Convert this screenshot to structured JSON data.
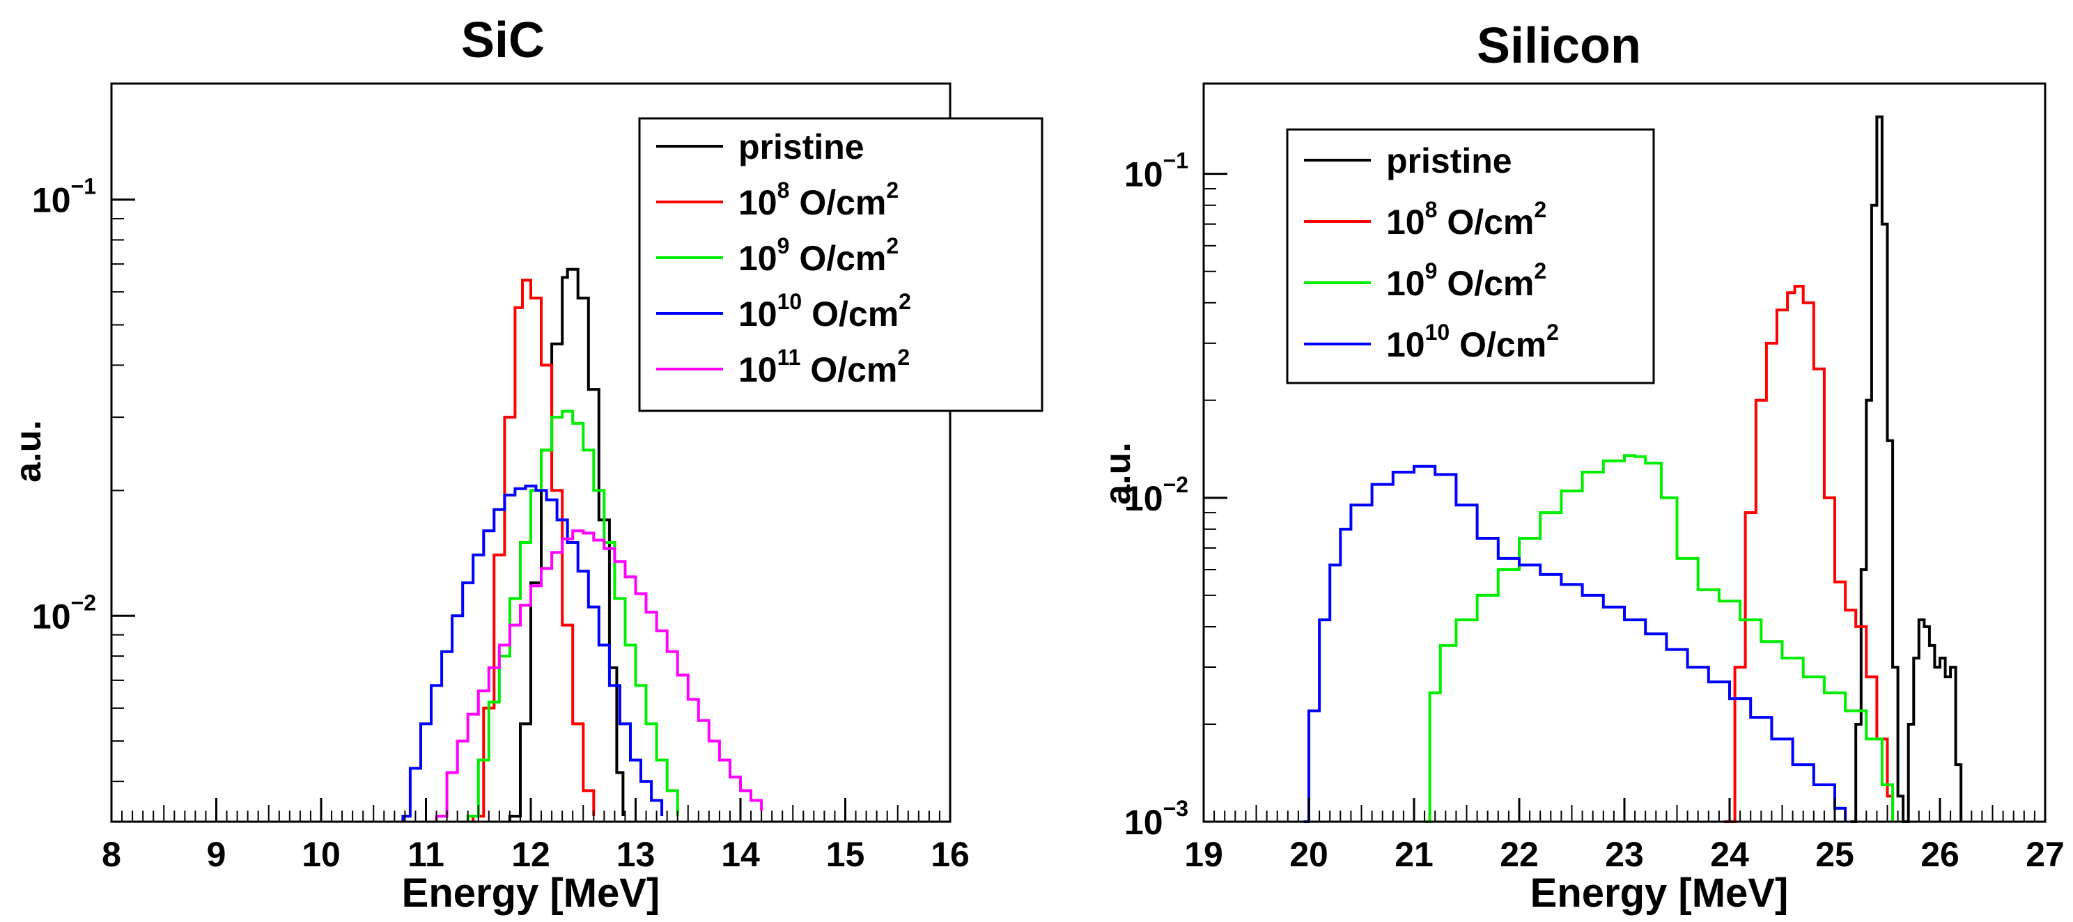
{
  "chart_data": [
    {
      "type": "line",
      "title": "SiC",
      "xlabel": "Energy [MeV]",
      "ylabel": "a.u.",
      "xlim": [
        8,
        16
      ],
      "ylim": [
        0.0032,
        0.19
      ],
      "yscale": "log",
      "xticks": [
        "8",
        "9",
        "10",
        "11",
        "12",
        "13",
        "14",
        "15",
        "16"
      ],
      "yticks": [
        {
          "value": 0.1,
          "base": "10",
          "exp": "−1"
        },
        {
          "value": 0.01,
          "base": "10",
          "exp": "−2"
        }
      ],
      "legend_position": "top-right",
      "series": [
        {
          "name": "pristine",
          "label_base": "pristine",
          "label_exp": "",
          "label_unit": "",
          "color": "#000000",
          "x": [
            11.8,
            11.9,
            12.0,
            12.1,
            12.2,
            12.3,
            12.35,
            12.45,
            12.55,
            12.65,
            12.75,
            12.82,
            12.88
          ],
          "y": [
            0.0033,
            0.0055,
            0.012,
            0.025,
            0.045,
            0.065,
            0.068,
            0.058,
            0.035,
            0.017,
            0.0075,
            0.0042,
            0.0033
          ]
        },
        {
          "name": "10^8 O/cm^2",
          "label_base": "10",
          "label_exp": "8",
          "label_unit": "O/cm",
          "color": "#ff0000",
          "x": [
            11.45,
            11.55,
            11.65,
            11.75,
            11.85,
            11.92,
            12.0,
            12.1,
            12.2,
            12.3,
            12.4,
            12.5,
            12.6
          ],
          "y": [
            0.0033,
            0.006,
            0.014,
            0.03,
            0.055,
            0.064,
            0.058,
            0.04,
            0.02,
            0.0095,
            0.0055,
            0.0038,
            0.0033
          ]
        },
        {
          "name": "10^9 O/cm^2",
          "label_base": "10",
          "label_exp": "9",
          "label_unit": "O/cm",
          "color": "#00ee00",
          "x": [
            11.4,
            11.5,
            11.6,
            11.7,
            11.8,
            11.9,
            12.0,
            12.1,
            12.2,
            12.3,
            12.4,
            12.5,
            12.6,
            12.7,
            12.8,
            12.9,
            13.0,
            13.1,
            13.2,
            13.3,
            13.4
          ],
          "y": [
            0.0033,
            0.0045,
            0.0062,
            0.008,
            0.011,
            0.015,
            0.02,
            0.025,
            0.03,
            0.031,
            0.029,
            0.025,
            0.02,
            0.015,
            0.011,
            0.0085,
            0.0068,
            0.0055,
            0.0045,
            0.0038,
            0.0033
          ]
        },
        {
          "name": "10^10 O/cm^2",
          "label_base": "10",
          "label_exp": "10",
          "label_unit": "O/cm",
          "color": "#0000ff",
          "x": [
            10.78,
            10.85,
            10.95,
            11.05,
            11.15,
            11.25,
            11.35,
            11.45,
            11.55,
            11.65,
            11.75,
            11.85,
            11.95,
            12.05,
            12.15,
            12.25,
            12.35,
            12.45,
            12.55,
            12.65,
            12.75,
            12.85,
            12.95,
            13.05,
            13.15,
            13.25
          ],
          "y": [
            0.0033,
            0.0043,
            0.0055,
            0.0068,
            0.0082,
            0.01,
            0.012,
            0.014,
            0.016,
            0.018,
            0.0195,
            0.0202,
            0.0205,
            0.02,
            0.019,
            0.017,
            0.015,
            0.0128,
            0.0105,
            0.0085,
            0.0068,
            0.0055,
            0.0045,
            0.004,
            0.0036,
            0.0033
          ]
        },
        {
          "name": "10^11 O/cm^2",
          "label_base": "10",
          "label_exp": "11",
          "label_unit": "O/cm",
          "color": "#ff00ff",
          "x": [
            11.1,
            11.2,
            11.3,
            11.4,
            11.5,
            11.6,
            11.7,
            11.8,
            11.9,
            12.0,
            12.1,
            12.2,
            12.3,
            12.4,
            12.5,
            12.6,
            12.7,
            12.8,
            12.9,
            13.0,
            13.1,
            13.2,
            13.3,
            13.4,
            13.5,
            13.6,
            13.7,
            13.8,
            13.9,
            14.0,
            14.1,
            14.2
          ],
          "y": [
            0.0033,
            0.0042,
            0.005,
            0.0058,
            0.0066,
            0.0075,
            0.0085,
            0.0095,
            0.0106,
            0.0118,
            0.013,
            0.0142,
            0.0153,
            0.016,
            0.0158,
            0.0152,
            0.0145,
            0.0135,
            0.0124,
            0.0113,
            0.0102,
            0.0092,
            0.0082,
            0.0072,
            0.0063,
            0.0056,
            0.005,
            0.0045,
            0.0041,
            0.0038,
            0.0036,
            0.0034
          ]
        }
      ]
    },
    {
      "type": "line",
      "title": "Silicon",
      "xlabel": "Energy [MeV]",
      "ylabel": "a.u.",
      "xlim": [
        19,
        27
      ],
      "ylim": [
        0.001,
        0.19
      ],
      "yscale": "log",
      "xticks": [
        "19",
        "20",
        "21",
        "22",
        "23",
        "24",
        "25",
        "26",
        "27"
      ],
      "yticks": [
        {
          "value": 0.1,
          "base": "10",
          "exp": "−1"
        },
        {
          "value": 0.01,
          "base": "10",
          "exp": "−2"
        },
        {
          "value": 0.001,
          "base": "10",
          "exp": "−3"
        }
      ],
      "legend_position": "top-left",
      "series": [
        {
          "name": "pristine",
          "label_base": "pristine",
          "label_exp": "",
          "label_unit": "",
          "color": "#000000",
          "x": [
            25.15,
            25.2,
            25.25,
            25.3,
            25.35,
            25.4,
            25.45,
            25.5,
            25.55,
            25.6,
            25.65,
            25.7,
            25.75,
            25.8,
            25.85,
            25.9,
            25.95,
            26.0,
            26.05,
            26.1,
            26.15,
            26.2
          ],
          "y": [
            0.001,
            0.002,
            0.006,
            0.02,
            0.08,
            0.15,
            0.07,
            0.015,
            0.003,
            0.0012,
            0.001,
            0.002,
            0.0032,
            0.0042,
            0.004,
            0.0035,
            0.003,
            0.0032,
            0.0028,
            0.003,
            0.0015,
            0.001
          ]
        },
        {
          "name": "10^8 O/cm^2",
          "label_base": "10",
          "label_exp": "8",
          "label_unit": "O/cm",
          "color": "#ff0000",
          "x": [
            23.95,
            24.05,
            24.15,
            24.25,
            24.35,
            24.45,
            24.55,
            24.62,
            24.7,
            24.8,
            24.9,
            25.0,
            25.1,
            25.2,
            25.3,
            25.4,
            25.5,
            25.55
          ],
          "y": [
            0.001,
            0.003,
            0.009,
            0.02,
            0.03,
            0.038,
            0.043,
            0.045,
            0.04,
            0.025,
            0.01,
            0.0055,
            0.0045,
            0.004,
            0.0028,
            0.0018,
            0.0012,
            0.001
          ]
        },
        {
          "name": "10^9 O/cm^2",
          "label_base": "10",
          "label_exp": "9",
          "label_unit": "O/cm",
          "color": "#00ee00",
          "x": [
            21.1,
            21.15,
            21.25,
            21.4,
            21.6,
            21.8,
            22.0,
            22.2,
            22.4,
            22.6,
            22.8,
            23.0,
            23.1,
            23.2,
            23.35,
            23.5,
            23.7,
            23.9,
            24.1,
            24.3,
            24.5,
            24.7,
            24.9,
            25.1,
            25.3,
            25.45,
            25.55
          ],
          "y": [
            0.001,
            0.0025,
            0.0035,
            0.0042,
            0.005,
            0.006,
            0.0075,
            0.009,
            0.0105,
            0.012,
            0.013,
            0.0135,
            0.0134,
            0.0128,
            0.01,
            0.0065,
            0.0052,
            0.0048,
            0.0042,
            0.0036,
            0.0032,
            0.0028,
            0.0025,
            0.0022,
            0.0018,
            0.0013,
            0.001
          ]
        },
        {
          "name": "10^10 O/cm^2",
          "label_base": "10",
          "label_exp": "10",
          "label_unit": "O/cm",
          "color": "#0000ff",
          "x": [
            19.95,
            20.0,
            20.1,
            20.2,
            20.3,
            20.4,
            20.6,
            20.8,
            21.0,
            21.2,
            21.4,
            21.6,
            21.8,
            22.0,
            22.2,
            22.4,
            22.6,
            22.8,
            23.0,
            23.2,
            23.4,
            23.6,
            23.8,
            24.0,
            24.2,
            24.4,
            24.6,
            24.8,
            25.0,
            25.1
          ],
          "y": [
            0.001,
            0.0022,
            0.0042,
            0.0062,
            0.008,
            0.0095,
            0.011,
            0.012,
            0.0125,
            0.0118,
            0.0095,
            0.0075,
            0.0065,
            0.0062,
            0.0058,
            0.0054,
            0.005,
            0.0046,
            0.0042,
            0.0038,
            0.0034,
            0.003,
            0.0027,
            0.0024,
            0.0021,
            0.0018,
            0.0015,
            0.0013,
            0.0011,
            0.001
          ]
        }
      ]
    }
  ]
}
